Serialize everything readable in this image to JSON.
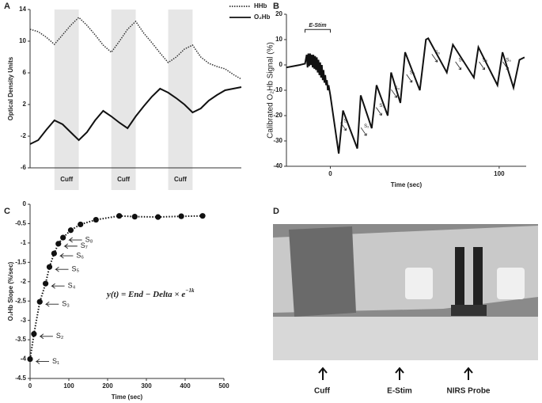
{
  "chart_data": [
    {
      "type": "line",
      "panel_label": "A",
      "ylabel": "Optical Density Units",
      "ylim": [
        -6,
        14
      ],
      "yticks": [
        -6,
        -2,
        2,
        6,
        10,
        14
      ],
      "series": [
        {
          "name": "HHb",
          "color": "#333333",
          "line_style": "dotted",
          "values": [
            11.5,
            11.2,
            10.5,
            9.6,
            10.8,
            12,
            13,
            12,
            10.8,
            9.5,
            8.6,
            10,
            11.5,
            12.5,
            11,
            9.8,
            8.5,
            7.3,
            8,
            9,
            9.5,
            8,
            7.2,
            6.8,
            6.5,
            5.8,
            5.2
          ]
        },
        {
          "name": "O₂Hb",
          "color": "#111111",
          "line_style": "solid",
          "values": [
            -3,
            -2.5,
            -1.2,
            0,
            -0.5,
            -1.5,
            -2.5,
            -1.5,
            0,
            1.2,
            0.5,
            -0.3,
            -1,
            0.5,
            1.8,
            3,
            4,
            3.5,
            2.8,
            2,
            1,
            1.5,
            2.5,
            3.2,
            3.8,
            4,
            4.2
          ]
        }
      ],
      "shaded_regions": [
        {
          "label": "Cuff",
          "span": [
            3,
            6
          ]
        },
        {
          "label": "Cuff",
          "span": [
            10,
            13
          ]
        },
        {
          "label": "Cuff",
          "span": [
            17,
            20
          ]
        }
      ]
    },
    {
      "type": "line",
      "panel_label": "B",
      "ylabel": "Calibrated O₂Hb Signal (%)",
      "xlabel": "Time (sec)",
      "xlim": [
        -26,
        116
      ],
      "xticks": [
        0,
        100
      ],
      "ylim": [
        -40,
        20
      ],
      "yticks": [
        -40,
        -30,
        -20,
        -10,
        0,
        10,
        20
      ],
      "x": [
        -26,
        -22,
        -18,
        -15,
        -14,
        -13.5,
        -13,
        -12.5,
        -12,
        -11.5,
        -11,
        -10.5,
        -10,
        -9.5,
        -9,
        -8.5,
        -8,
        -7.5,
        -7,
        -6.5,
        -6,
        -5.5,
        -5,
        -4.5,
        -4,
        -3.5,
        -3,
        -2.5,
        -2,
        -1.5,
        -1,
        0,
        5,
        7.5,
        16,
        18,
        24.5,
        27.4,
        34,
        36,
        41.5,
        44.3,
        53,
        56.6,
        58,
        69,
        72.6,
        85,
        87.7,
        99,
        102,
        108.5,
        112,
        115
      ],
      "series": [
        {
          "name": "O₂Hb",
          "color": "#111111",
          "values": [
            -1,
            -0.5,
            0,
            0.5,
            4,
            -1,
            4.5,
            -0.5,
            4.5,
            0,
            4,
            -1,
            4,
            -1.5,
            3.5,
            -2,
            3,
            -3,
            2,
            -4,
            1,
            -5,
            0,
            -6,
            -2,
            -7,
            -4,
            -8,
            -6,
            -10,
            -8,
            -12,
            -35,
            -18,
            -33,
            -12,
            -25,
            -8,
            -20,
            -3,
            -15,
            5,
            -10,
            10,
            10.5,
            -3,
            8,
            -5,
            7,
            -8,
            5,
            -9,
            2,
            3
          ]
        }
      ],
      "annotations": [
        "E-Stim",
        "S₁",
        "S₂",
        "S₃",
        "S₄",
        "S₅",
        "S₆",
        "S₇",
        "S₈",
        "S₉"
      ]
    },
    {
      "type": "scatter",
      "panel_label": "C",
      "ylabel": "O₂Hb Slope (%/sec)",
      "xlabel": "Time (sec)",
      "xlim": [
        0,
        500
      ],
      "xticks": [
        0,
        100,
        200,
        300,
        400,
        500
      ],
      "ylim": [
        -4.5,
        0
      ],
      "yticks": [
        -4.5,
        -4,
        -3.5,
        -3,
        -2.5,
        -2,
        -1.5,
        -1,
        -0.5,
        0
      ],
      "x": [
        0,
        10,
        25,
        40,
        50,
        62,
        73,
        85,
        105,
        130,
        170,
        230,
        270,
        330,
        390,
        445
      ],
      "series": [
        {
          "name": "O₂Hb Slope",
          "color": "#111111",
          "values": [
            -4,
            -3.35,
            -2.52,
            -2.05,
            -1.62,
            -1.27,
            -1.02,
            -0.86,
            -0.67,
            -0.52,
            -0.4,
            -0.3,
            -0.32,
            -0.33,
            -0.31,
            -0.3
          ]
        }
      ],
      "annotations": [
        "S₁",
        "S₂",
        "S₃",
        "S₄",
        "S₅",
        "S₆",
        "S₇",
        "S₈"
      ],
      "equation": {
        "text": "y(t) = End − Delta × e",
        "exponent": "−1k"
      }
    }
  ],
  "photo": {
    "panel_label": "D",
    "labels": [
      "Cuff",
      "E-Stim",
      "NIRS Probe"
    ]
  }
}
